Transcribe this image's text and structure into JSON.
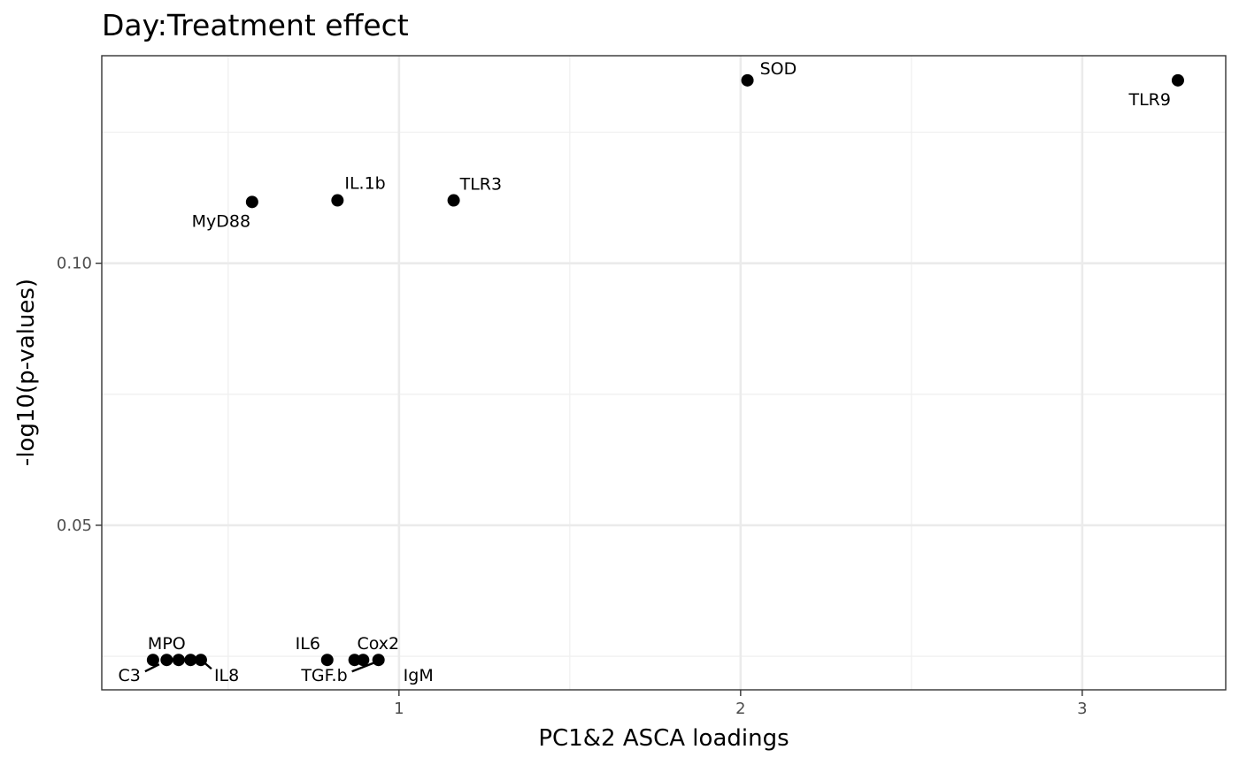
{
  "chart_data": {
    "type": "scatter",
    "title": "Day:Treatment effect",
    "xlabel": "PC1&2 ASCA loadings",
    "ylabel": "-log10(p-values)",
    "xlim": [
      0.13,
      3.42
    ],
    "ylim": [
      0.0186,
      0.1396
    ],
    "x_ticks": [
      {
        "value": 1,
        "label": "1"
      },
      {
        "value": 2,
        "label": "2"
      },
      {
        "value": 3,
        "label": "3"
      }
    ],
    "y_ticks": [
      {
        "value": 0.05,
        "label": "0.05"
      },
      {
        "value": 0.1,
        "label": "0.10"
      }
    ],
    "x_minor": [
      0.5,
      1.5,
      2.5
    ],
    "y_minor": [
      0.025,
      0.075,
      0.125
    ],
    "grid": true,
    "points": [
      {
        "x": 0.28,
        "y": 0.0243
      },
      {
        "x": 0.32,
        "y": 0.0243,
        "label": "MPO"
      },
      {
        "x": 0.355,
        "y": 0.0243
      },
      {
        "x": 0.39,
        "y": 0.0243
      },
      {
        "x": 0.42,
        "y": 0.0243
      },
      {
        "x": 0.57,
        "y": 0.1117,
        "label": "MyD88"
      },
      {
        "x": 0.79,
        "y": 0.0243,
        "label": "IL6"
      },
      {
        "x": 0.82,
        "y": 0.112,
        "label": "IL.1b"
      },
      {
        "x": 0.87,
        "y": 0.0243
      },
      {
        "x": 0.895,
        "y": 0.0243,
        "label": "Cox2"
      },
      {
        "x": 0.94,
        "y": 0.0243
      },
      {
        "x": 1.16,
        "y": 0.112,
        "label": "TLR3"
      },
      {
        "x": 2.02,
        "y": 0.1349,
        "label": "SOD"
      },
      {
        "x": 3.28,
        "y": 0.1349,
        "label": "TLR9"
      }
    ],
    "offset_labels": [
      {
        "label": "C3",
        "x": 0.28,
        "y": 0.0243
      },
      {
        "label": "IL8",
        "x": 0.42,
        "y": 0.0243
      },
      {
        "label": "TGF.b",
        "x": 0.87,
        "y": 0.0243
      },
      {
        "label": "IgM",
        "x": 0.94,
        "y": 0.0243
      }
    ]
  }
}
